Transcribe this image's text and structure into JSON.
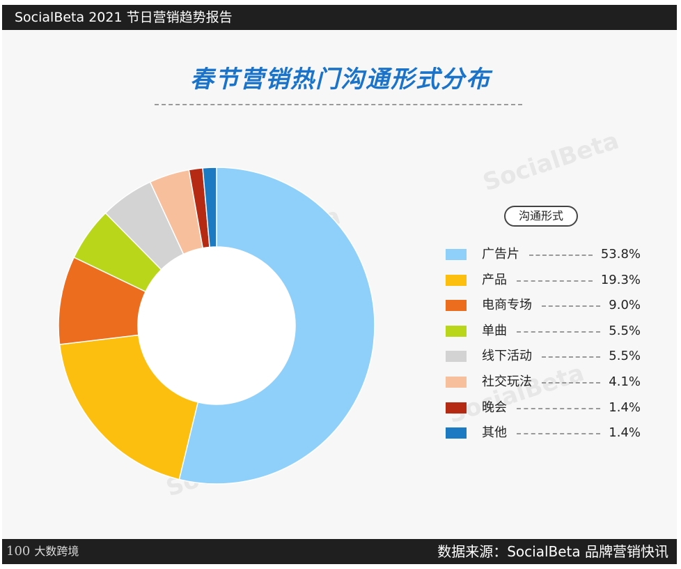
{
  "header": {
    "title": "SocialBeta 2021 节日营销趋势报告"
  },
  "chart_data": {
    "type": "pie",
    "title": "春节营销热门沟通形式分布",
    "legend_title": "沟通形式",
    "legend_position": "right",
    "categories": [
      "广告片",
      "产品",
      "电商专场",
      "单曲",
      "线下活动",
      "社交玩法",
      "晚会",
      "其他"
    ],
    "values": [
      53.8,
      19.3,
      9.0,
      5.5,
      5.5,
      4.1,
      1.4,
      1.4
    ],
    "value_labels": [
      "53.8%",
      "19.3%",
      "9.0%",
      "5.5%",
      "5.5%",
      "4.1%",
      "1.4%",
      "1.4%"
    ],
    "colors": [
      "#8fd0fb",
      "#fdbf0f",
      "#ec6d1d",
      "#b9d61a",
      "#d3d3d3",
      "#f7bf9c",
      "#b52a12",
      "#1c7ac2"
    ]
  },
  "watermark": "SocialBeta",
  "footer": {
    "source": "数据来源：SocialBeta 品牌营销快讯",
    "brand_mark": "100",
    "brand_name": "大数跨境"
  }
}
